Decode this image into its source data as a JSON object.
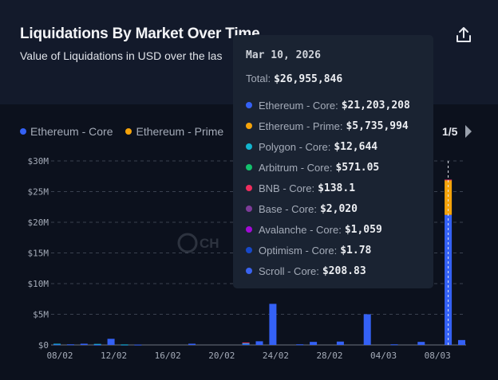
{
  "header": {
    "title": "Liquidations By Market Over Time",
    "subtitle": "Value of Liquidations in USD over the las"
  },
  "legend": {
    "items": [
      {
        "label": "Ethereum - Core",
        "color": "#3461f5"
      },
      {
        "label": "Ethereum - Prime",
        "color": "#f5a30a"
      }
    ],
    "page": "1/5"
  },
  "watermark": "CH",
  "tooltip": {
    "date": "Mar 10, 2026",
    "total_label": "Total:",
    "total": "$26,955,846",
    "rows": [
      {
        "label": "Ethereum - Core:",
        "value": "$21,203,208",
        "color": "#3461f5"
      },
      {
        "label": "Ethereum - Prime:",
        "value": "$5,735,994",
        "color": "#f5a30a"
      },
      {
        "label": "Polygon - Core:",
        "value": "$12,644",
        "color": "#12b5cf"
      },
      {
        "label": "Arbitrum - Core:",
        "value": "$571.05",
        "color": "#13c06c"
      },
      {
        "label": "BNB - Core:",
        "value": "$138.1",
        "color": "#ef2d5e"
      },
      {
        "label": "Base - Core:",
        "value": "$2,020",
        "color": "#7d3c98"
      },
      {
        "label": "Avalanche - Core:",
        "value": "$1,059",
        "color": "#a10ad6"
      },
      {
        "label": "Optimism - Core:",
        "value": "$1.78",
        "color": "#1748c9"
      },
      {
        "label": "Scroll - Core:",
        "value": "$208.83",
        "color": "#3a63f0"
      }
    ]
  },
  "chart_data": {
    "type": "bar",
    "stacked": true,
    "ylim": [
      0,
      30000000
    ],
    "y_ticks": [
      "$0",
      "$5M",
      "$10M",
      "$15M",
      "$20M",
      "$25M",
      "$30M"
    ],
    "x_ticks": [
      "08/02",
      "12/02",
      "16/02",
      "20/02",
      "24/02",
      "28/02",
      "04/03",
      "08/03"
    ],
    "grid": "horizontal dashed",
    "highlighted_index": 29,
    "series": [
      {
        "name": "Ethereum - Core",
        "color": "#3461f5",
        "values": [
          0.1,
          0.1,
          0.2,
          0.05,
          1.0,
          0.05,
          0.05,
          0,
          0,
          0,
          0.2,
          0,
          0,
          0,
          0.2,
          0.6,
          6.7,
          0,
          0.1,
          0.5,
          0,
          0.55,
          0,
          5.0,
          0,
          0.1,
          0,
          0.5,
          0,
          21.203208,
          0.8
        ]
      },
      {
        "name": "Ethereum - Prime",
        "color": "#f5a30a",
        "values": [
          0,
          0,
          0,
          0,
          0,
          0,
          0,
          0,
          0,
          0,
          0,
          0,
          0,
          0,
          0,
          0,
          0,
          0,
          0,
          0,
          0,
          0,
          0,
          0,
          0,
          0,
          0,
          0,
          0,
          5.735994,
          0
        ]
      },
      {
        "name": "Polygon - Core",
        "color": "#12b5cf",
        "values": [
          0.1,
          0,
          0,
          0.12,
          0,
          0.03,
          0,
          0,
          0,
          0,
          0,
          0,
          0,
          0,
          0.1,
          0,
          0,
          0,
          0,
          0,
          0,
          0,
          0,
          0,
          0,
          0,
          0,
          0,
          0,
          0.012644,
          0
        ]
      },
      {
        "name": "BNB - Core",
        "color": "#ef2d5e",
        "values": [
          0,
          0,
          0,
          0,
          0,
          0,
          0,
          0,
          0,
          0,
          0,
          0,
          0,
          0,
          0.1,
          0,
          0,
          0,
          0,
          0,
          0,
          0,
          0,
          0,
          0,
          0,
          0,
          0,
          0,
          0.0001381,
          0
        ]
      }
    ],
    "value_unit": "millions USD"
  }
}
